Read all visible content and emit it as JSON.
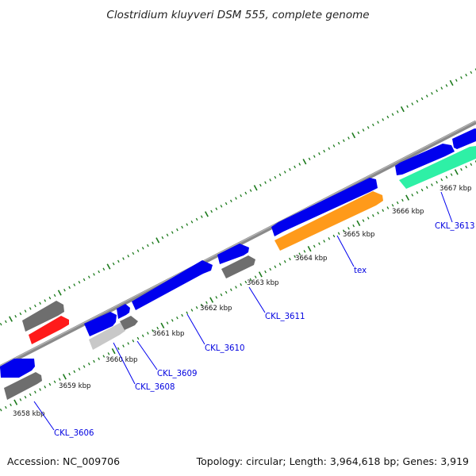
{
  "title": "Clostridium kluyveri DSM 555, complete genome",
  "footer": {
    "accession": "Accession: NC_009706",
    "summary": "Topology: circular; Length: 3,964,618 bp; Genes: 3,919"
  },
  "colors": {
    "backbone": "#8a8a8a",
    "forward_cds": "#0000ee",
    "reverse_gray": "#6e6e6e",
    "light_gray": "#c8c8c8",
    "red": "#ff1a1a",
    "orange": "#ff9a1a",
    "teal": "#2ef0a6",
    "ticks": "#1c7a1c",
    "labels": "#0000e0"
  },
  "ticks": [
    {
      "label": "3658 kbp"
    },
    {
      "label": "3659 kbp"
    },
    {
      "label": "3660 kbp"
    },
    {
      "label": "3661 kbp"
    },
    {
      "label": "3662 kbp"
    },
    {
      "label": "3663 kbp"
    },
    {
      "label": "3664 kbp"
    },
    {
      "label": "3665 kbp"
    },
    {
      "label": "3666 kbp"
    },
    {
      "label": "3667 kbp"
    }
  ],
  "gene_labels": [
    {
      "label": "CKL_3606"
    },
    {
      "label": "CKL_3608"
    },
    {
      "label": "CKL_3609"
    },
    {
      "label": "CKL_3610"
    },
    {
      "label": "CKL_3611"
    },
    {
      "label": "tex"
    },
    {
      "label": "CKL_3613"
    }
  ]
}
